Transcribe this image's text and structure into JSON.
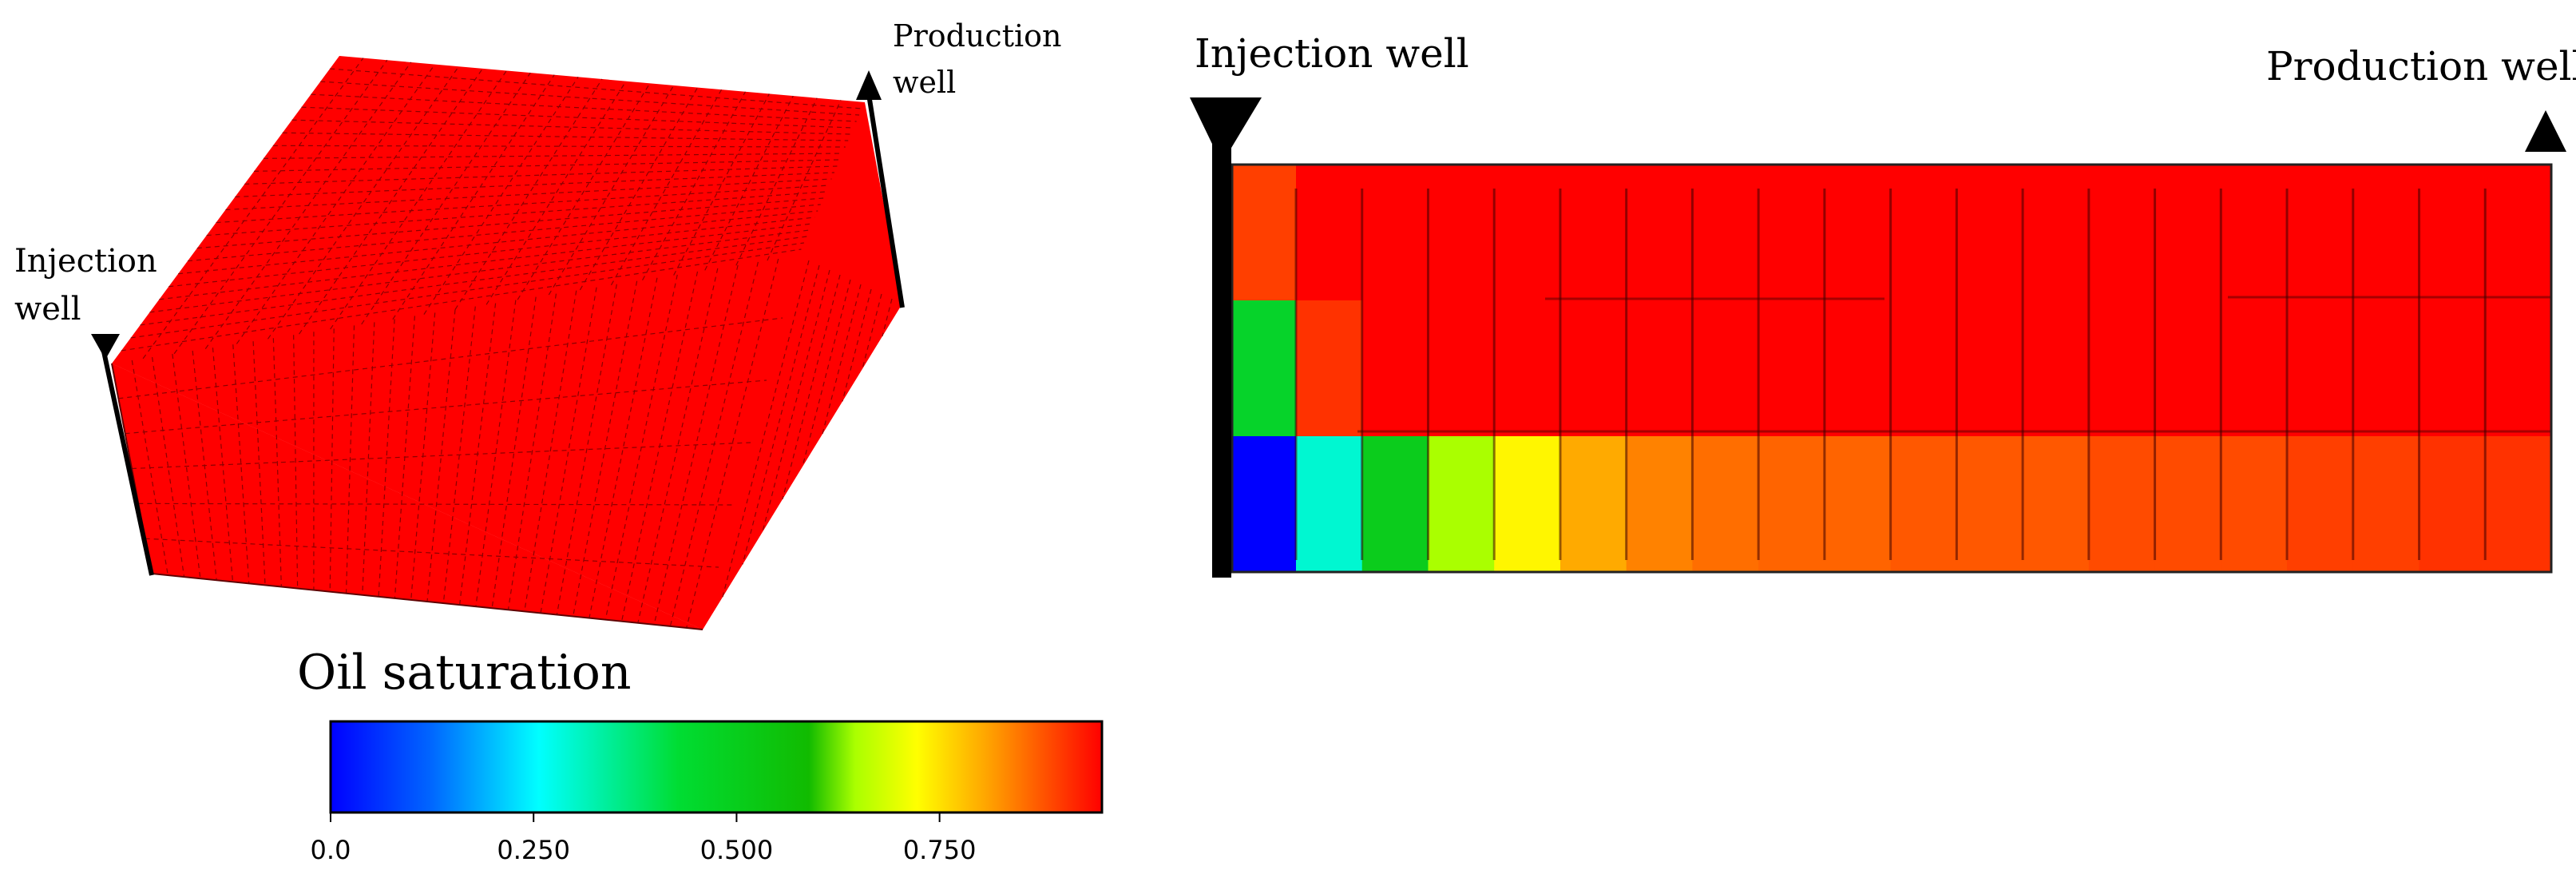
{
  "left_panel": {
    "injection_label_line1": "Injection",
    "injection_label_line2": "well",
    "production_label_line1": "Production",
    "production_label_line2": "well",
    "uniform_saturation": 0.95
  },
  "right_panel": {
    "injection_label": "Injection well",
    "production_label": "Production well",
    "columns": 20,
    "layers": [
      [
        0.92,
        0.96,
        0.96,
        0.96,
        0.96,
        0.96,
        0.96,
        0.96,
        0.96,
        0.96,
        0.96,
        0.96,
        0.96,
        0.96,
        0.96,
        0.96,
        0.96,
        0.96,
        0.96,
        0.96
      ],
      [
        0.47,
        0.93,
        0.96,
        0.96,
        0.96,
        0.96,
        0.96,
        0.96,
        0.96,
        0.96,
        0.96,
        0.96,
        0.96,
        0.96,
        0.96,
        0.96,
        0.96,
        0.96,
        0.96,
        0.96
      ],
      [
        0.0,
        0.3,
        0.5,
        0.65,
        0.74,
        0.82,
        0.86,
        0.88,
        0.89,
        0.89,
        0.9,
        0.9,
        0.9,
        0.91,
        0.91,
        0.91,
        0.92,
        0.92,
        0.93,
        0.93
      ]
    ]
  },
  "legend": {
    "title": "Oil saturation",
    "ticks": [
      "0.0",
      "0.250",
      "0.500",
      "0.750"
    ],
    "tick_values": [
      0,
      0.25,
      0.5,
      0.75
    ],
    "min": 0,
    "max": 0.95
  },
  "colors": {
    "oil_high": "#ff0000",
    "grid_line": "#8b0000",
    "well": "#000000"
  }
}
